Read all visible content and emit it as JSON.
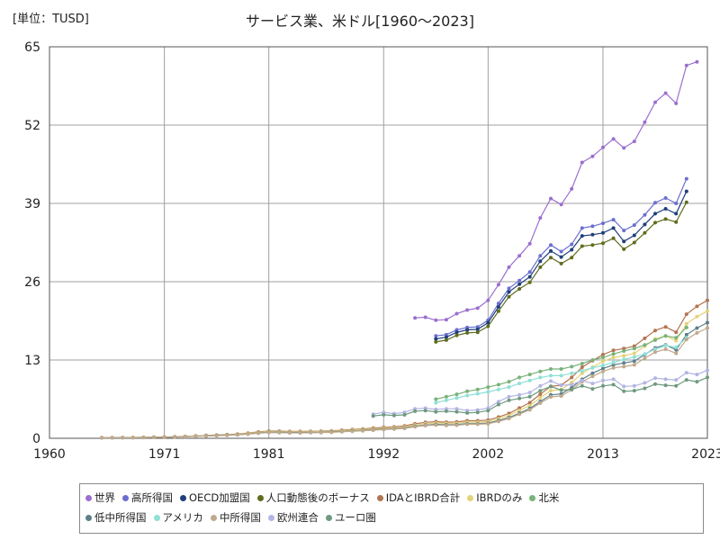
{
  "unit_label": "[単位：TUSD]",
  "chart_data": {
    "type": "line",
    "title": "サービス業、米ドル[1960～2023]",
    "xlim": [
      1960,
      2023
    ],
    "ylim": [
      0,
      65
    ],
    "x_ticks": [
      "1960",
      "1971",
      "1981",
      "1992",
      "2002",
      "2013",
      "2023"
    ],
    "y_ticks": [
      "0",
      "13",
      "26",
      "39",
      "52",
      "65"
    ],
    "grid": true,
    "legend_position": "bottom",
    "series": [
      {
        "name": "世界",
        "color": "#9b6fcf",
        "x": [
          1995,
          1996,
          1997,
          1998,
          1999,
          2000,
          2001,
          2002,
          2003,
          2004,
          2005,
          2006,
          2007,
          2008,
          2009,
          2010,
          2011,
          2012,
          2013,
          2014,
          2015,
          2016,
          2017,
          2018,
          2019,
          2020,
          2021,
          2022
        ],
        "y": [
          20.0,
          20.1,
          19.6,
          19.7,
          20.7,
          21.3,
          21.6,
          22.9,
          25.5,
          28.4,
          30.3,
          32.3,
          36.6,
          39.8,
          38.8,
          41.4,
          45.8,
          46.8,
          48.3,
          49.7,
          48.2,
          49.3,
          52.5,
          55.8,
          57.3,
          55.6,
          61.9,
          62.5
        ]
      },
      {
        "name": "高所得国",
        "color": "#6a6fcf",
        "x": [
          1997,
          1998,
          1999,
          2000,
          2001,
          2002,
          2003,
          2004,
          2005,
          2006,
          2007,
          2008,
          2009,
          2010,
          2011,
          2012,
          2013,
          2014,
          2015,
          2016,
          2017,
          2018,
          2019,
          2020,
          2021
        ],
        "y": [
          17.0,
          17.2,
          18.0,
          18.4,
          18.5,
          19.6,
          22.4,
          24.9,
          26.2,
          27.6,
          30.3,
          32.1,
          31.0,
          32.2,
          34.9,
          35.2,
          35.7,
          36.3,
          34.5,
          35.4,
          37.1,
          39.1,
          39.9,
          39.0,
          43.1
        ]
      },
      {
        "name": "OECD加盟国",
        "color": "#1f3f7a",
        "x": [
          1997,
          1998,
          1999,
          2000,
          2001,
          2002,
          2003,
          2004,
          2005,
          2006,
          2007,
          2008,
          2009,
          2010,
          2011,
          2012,
          2013,
          2014,
          2015,
          2016,
          2017,
          2018,
          2019,
          2020,
          2021
        ],
        "y": [
          16.5,
          16.8,
          17.6,
          18.0,
          18.1,
          19.2,
          21.8,
          24.3,
          25.6,
          26.8,
          29.4,
          31.1,
          30.1,
          31.3,
          33.6,
          33.8,
          34.1,
          34.9,
          32.7,
          33.7,
          35.5,
          37.3,
          38.1,
          37.3,
          41.0
        ]
      },
      {
        "name": "人口動態後のボーナス",
        "color": "#606c1e",
        "x": [
          1997,
          1998,
          1999,
          2000,
          2001,
          2002,
          2003,
          2004,
          2005,
          2006,
          2007,
          2008,
          2009,
          2010,
          2011,
          2012,
          2013,
          2014,
          2015,
          2016,
          2017,
          2018,
          2019,
          2020,
          2021
        ],
        "y": [
          16.0,
          16.3,
          17.1,
          17.5,
          17.6,
          18.6,
          21.1,
          23.5,
          24.8,
          25.9,
          28.4,
          30.0,
          29.0,
          30.0,
          31.9,
          32.1,
          32.4,
          33.2,
          31.4,
          32.5,
          34.1,
          35.8,
          36.4,
          35.9,
          39.2
        ]
      },
      {
        "name": "IDAとIBRD合計",
        "color": "#b27452",
        "x": [
          1965,
          1966,
          1967,
          1968,
          1969,
          1970,
          1971,
          1972,
          1973,
          1974,
          1975,
          1976,
          1977,
          1978,
          1979,
          1980,
          1981,
          1982,
          1983,
          1984,
          1985,
          1986,
          1987,
          1988,
          1989,
          1990,
          1991,
          1992,
          1993,
          1994,
          1995,
          1996,
          1997,
          1998,
          1999,
          2000,
          2001,
          2002,
          2003,
          2004,
          2005,
          2006,
          2007,
          2008,
          2009,
          2010,
          2011,
          2012,
          2013,
          2014,
          2015,
          2016,
          2017,
          2018,
          2019,
          2020,
          2021,
          2022,
          2023
        ],
        "y": [
          0.1,
          0.11,
          0.12,
          0.14,
          0.16,
          0.18,
          0.21,
          0.25,
          0.32,
          0.4,
          0.48,
          0.54,
          0.62,
          0.72,
          0.86,
          1.06,
          1.2,
          1.18,
          1.14,
          1.14,
          1.16,
          1.18,
          1.24,
          1.34,
          1.46,
          1.56,
          1.7,
          1.82,
          1.92,
          2.06,
          2.4,
          2.64,
          2.76,
          2.68,
          2.72,
          2.92,
          2.92,
          3.02,
          3.52,
          4.12,
          5.02,
          5.92,
          7.32,
          8.62,
          8.82,
          10.1,
          11.8,
          12.9,
          13.9,
          14.6,
          14.9,
          15.3,
          16.6,
          17.9,
          18.5,
          17.6,
          20.6,
          21.9,
          22.9
        ]
      },
      {
        "name": "IBRDのみ",
        "color": "#e3d27a",
        "x": [
          1965,
          1966,
          1967,
          1968,
          1969,
          1970,
          1971,
          1972,
          1973,
          1974,
          1975,
          1976,
          1977,
          1978,
          1979,
          1980,
          1981,
          1982,
          1983,
          1984,
          1985,
          1986,
          1987,
          1988,
          1989,
          1990,
          1991,
          1992,
          1993,
          1994,
          1995,
          1996,
          1997,
          1998,
          1999,
          2000,
          2001,
          2002,
          2003,
          2004,
          2005,
          2006,
          2007,
          2008,
          2009,
          2010,
          2011,
          2012,
          2013,
          2014,
          2015,
          2016,
          2017,
          2018,
          2019,
          2020,
          2021,
          2022,
          2023
        ],
        "y": [
          0.09,
          0.1,
          0.11,
          0.13,
          0.15,
          0.17,
          0.19,
          0.23,
          0.3,
          0.37,
          0.44,
          0.5,
          0.57,
          0.66,
          0.79,
          0.97,
          1.1,
          1.08,
          1.05,
          1.05,
          1.07,
          1.09,
          1.14,
          1.23,
          1.34,
          1.43,
          1.56,
          1.67,
          1.76,
          1.89,
          2.2,
          2.42,
          2.53,
          2.46,
          2.5,
          2.68,
          2.68,
          2.77,
          3.23,
          3.78,
          4.61,
          5.43,
          6.72,
          7.91,
          8.09,
          9.27,
          10.8,
          11.8,
          12.8,
          13.4,
          13.7,
          14.1,
          15.3,
          16.5,
          17.0,
          16.2,
          19.0,
          20.2,
          21.1
        ]
      },
      {
        "name": "北米",
        "color": "#78b37a",
        "x": [
          1997,
          1998,
          1999,
          2000,
          2001,
          2002,
          2003,
          2004,
          2005,
          2006,
          2007,
          2008,
          2009,
          2010,
          2011,
          2012,
          2013,
          2014,
          2015,
          2016,
          2017,
          2018,
          2019,
          2020,
          2021
        ],
        "y": [
          6.5,
          6.9,
          7.3,
          7.8,
          8.1,
          8.5,
          8.9,
          9.4,
          10.1,
          10.6,
          11.1,
          11.5,
          11.5,
          11.9,
          12.4,
          13.0,
          13.4,
          14.0,
          14.5,
          14.9,
          15.5,
          16.3,
          17.0,
          16.7,
          18.4
        ]
      },
      {
        "name": "低中所得国",
        "color": "#5d7f8a",
        "x": [
          1965,
          1966,
          1967,
          1968,
          1969,
          1970,
          1971,
          1972,
          1973,
          1974,
          1975,
          1976,
          1977,
          1978,
          1979,
          1980,
          1981,
          1982,
          1983,
          1984,
          1985,
          1986,
          1987,
          1988,
          1989,
          1990,
          1991,
          1992,
          1993,
          1994,
          1995,
          1996,
          1997,
          1998,
          1999,
          2000,
          2001,
          2002,
          2003,
          2004,
          2005,
          2006,
          2007,
          2008,
          2009,
          2010,
          2011,
          2012,
          2013,
          2014,
          2015,
          2016,
          2017,
          2018,
          2019,
          2020,
          2021,
          2022,
          2023
        ],
        "y": [
          0.08,
          0.09,
          0.1,
          0.12,
          0.14,
          0.16,
          0.18,
          0.21,
          0.27,
          0.34,
          0.4,
          0.46,
          0.52,
          0.6,
          0.72,
          0.88,
          1.0,
          0.98,
          0.95,
          0.95,
          0.97,
          0.99,
          1.04,
          1.12,
          1.22,
          1.3,
          1.42,
          1.52,
          1.6,
          1.72,
          2.0,
          2.2,
          2.3,
          2.24,
          2.27,
          2.44,
          2.44,
          2.52,
          2.94,
          3.44,
          4.19,
          4.94,
          6.11,
          7.2,
          7.36,
          8.42,
          9.8,
          10.8,
          11.6,
          12.2,
          12.5,
          12.8,
          13.9,
          15.0,
          15.5,
          14.7,
          17.2,
          18.3,
          19.2
        ]
      },
      {
        "name": "アメリカ",
        "color": "#8fe0d5",
        "x": [
          1997,
          1998,
          1999,
          2000,
          2001,
          2002,
          2003,
          2004,
          2005,
          2006,
          2007,
          2008,
          2009,
          2010,
          2011,
          2012,
          2013,
          2014,
          2015,
          2016,
          2017,
          2018,
          2019,
          2020,
          2021
        ],
        "y": [
          5.9,
          6.3,
          6.7,
          7.1,
          7.4,
          7.7,
          8.1,
          8.5,
          9.1,
          9.6,
          10.1,
          10.4,
          10.4,
          10.8,
          11.2,
          11.7,
          12.1,
          12.6,
          13.1,
          13.5,
          14.0,
          14.8,
          15.4,
          15.1,
          16.7
        ]
      },
      {
        "name": "中所得国",
        "color": "#c0a98c",
        "x": [
          1965,
          1966,
          1967,
          1968,
          1969,
          1970,
          1971,
          1972,
          1973,
          1974,
          1975,
          1976,
          1977,
          1978,
          1979,
          1980,
          1981,
          1982,
          1983,
          1984,
          1985,
          1986,
          1987,
          1988,
          1989,
          1990,
          1991,
          1992,
          1993,
          1994,
          1995,
          1996,
          1997,
          1998,
          1999,
          2000,
          2001,
          2002,
          2003,
          2004,
          2005,
          2006,
          2007,
          2008,
          2009,
          2010,
          2011,
          2012,
          2013,
          2014,
          2015,
          2016,
          2017,
          2018,
          2019,
          2020,
          2021,
          2022,
          2023
        ],
        "y": [
          0.08,
          0.09,
          0.1,
          0.11,
          0.13,
          0.15,
          0.17,
          0.2,
          0.26,
          0.32,
          0.38,
          0.43,
          0.5,
          0.57,
          0.68,
          0.84,
          0.95,
          0.93,
          0.9,
          0.9,
          0.92,
          0.94,
          0.99,
          1.07,
          1.16,
          1.24,
          1.35,
          1.45,
          1.53,
          1.64,
          1.91,
          2.1,
          2.2,
          2.14,
          2.17,
          2.33,
          2.33,
          2.41,
          2.81,
          3.29,
          4.0,
          4.72,
          5.84,
          6.88,
          7.03,
          8.05,
          9.4,
          10.3,
          11.1,
          11.7,
          11.9,
          12.2,
          13.3,
          14.3,
          14.8,
          14.1,
          16.4,
          17.5,
          18.3
        ]
      },
      {
        "name": "欧州連合",
        "color": "#b3b5e3",
        "x": [
          1991,
          1992,
          1993,
          1994,
          1995,
          1996,
          1997,
          1998,
          1999,
          2000,
          2001,
          2002,
          2003,
          2004,
          2005,
          2006,
          2007,
          2008,
          2009,
          2010,
          2011,
          2012,
          2013,
          2014,
          2015,
          2016,
          2017,
          2018,
          2019,
          2020,
          2021,
          2022,
          2023
        ],
        "y": [
          4.0,
          4.3,
          4.1,
          4.3,
          4.9,
          5.0,
          4.8,
          4.9,
          4.9,
          4.6,
          4.7,
          5.0,
          6.1,
          6.9,
          7.2,
          7.6,
          8.7,
          9.5,
          8.8,
          8.9,
          9.6,
          9.1,
          9.6,
          9.8,
          8.6,
          8.7,
          9.2,
          10.0,
          9.8,
          9.7,
          10.9,
          10.6,
          11.3
        ]
      },
      {
        "name": "ユーロ圏",
        "color": "#6f9a80",
        "x": [
          1991,
          1992,
          1993,
          1994,
          1995,
          1996,
          1997,
          1998,
          1999,
          2000,
          2001,
          2002,
          2003,
          2004,
          2005,
          2006,
          2007,
          2008,
          2009,
          2010,
          2011,
          2012,
          2013,
          2014,
          2015,
          2016,
          2017,
          2018,
          2019,
          2020,
          2021,
          2022,
          2023
        ],
        "y": [
          3.7,
          3.9,
          3.8,
          3.9,
          4.5,
          4.6,
          4.4,
          4.5,
          4.4,
          4.2,
          4.3,
          4.6,
          5.6,
          6.3,
          6.6,
          6.9,
          7.9,
          8.6,
          8.0,
          8.1,
          8.7,
          8.2,
          8.7,
          8.9,
          7.8,
          7.9,
          8.3,
          9.0,
          8.8,
          8.7,
          9.7,
          9.4,
          10.1
        ]
      }
    ]
  }
}
